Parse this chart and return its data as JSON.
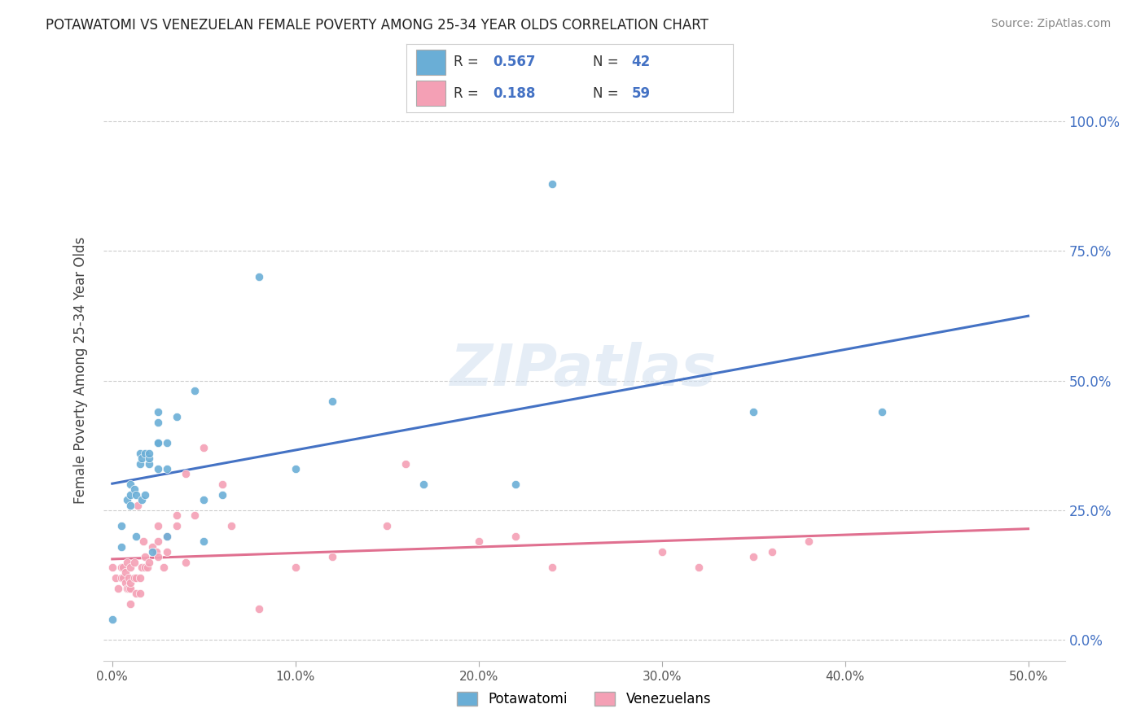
{
  "title": "POTAWATOMI VS VENEZUELAN FEMALE POVERTY AMONG 25-34 YEAR OLDS CORRELATION CHART",
  "source": "Source: ZipAtlas.com",
  "xlabel_ticks": [
    "0.0%",
    "10.0%",
    "20.0%",
    "30.0%",
    "40.0%",
    "50.0%"
  ],
  "xlabel_tick_vals": [
    0.0,
    0.1,
    0.2,
    0.3,
    0.4,
    0.5
  ],
  "ylabel_ticks": [
    "0.0%",
    "25.0%",
    "50.0%",
    "75.0%",
    "100.0%"
  ],
  "ylabel_tick_vals": [
    0.0,
    0.25,
    0.5,
    0.75,
    1.0
  ],
  "xlim": [
    -0.005,
    0.52
  ],
  "ylim": [
    -0.04,
    1.08
  ],
  "ylabel": "Female Poverty Among 25-34 Year Olds",
  "R_potawatomi": 0.567,
  "N_potawatomi": 42,
  "R_venezuelan": 0.188,
  "N_venezuelan": 59,
  "color_potawatomi": "#6aaed6",
  "color_venezuelan": "#f4a0b5",
  "trendline_color_potawatomi": "#4472c4",
  "trendline_color_venezuelan": "#e07090",
  "watermark": "ZIPatlas",
  "potawatomi_x": [
    0.0,
    0.005,
    0.005,
    0.008,
    0.01,
    0.01,
    0.01,
    0.012,
    0.013,
    0.013,
    0.015,
    0.015,
    0.016,
    0.016,
    0.018,
    0.018,
    0.02,
    0.02,
    0.02,
    0.022,
    0.025,
    0.025,
    0.025,
    0.025,
    0.025,
    0.025,
    0.03,
    0.03,
    0.03,
    0.035,
    0.045,
    0.05,
    0.05,
    0.06,
    0.08,
    0.1,
    0.12,
    0.17,
    0.22,
    0.24,
    0.35,
    0.42
  ],
  "potawatomi_y": [
    0.04,
    0.18,
    0.22,
    0.27,
    0.26,
    0.28,
    0.3,
    0.29,
    0.28,
    0.2,
    0.34,
    0.36,
    0.27,
    0.35,
    0.28,
    0.36,
    0.34,
    0.35,
    0.36,
    0.17,
    0.33,
    0.38,
    0.38,
    0.38,
    0.42,
    0.44,
    0.38,
    0.2,
    0.33,
    0.43,
    0.48,
    0.19,
    0.27,
    0.28,
    0.7,
    0.33,
    0.46,
    0.3,
    0.3,
    0.88,
    0.44,
    0.44
  ],
  "venezuelan_x": [
    0.0,
    0.002,
    0.003,
    0.005,
    0.005,
    0.006,
    0.006,
    0.007,
    0.007,
    0.008,
    0.008,
    0.009,
    0.009,
    0.01,
    0.01,
    0.01,
    0.01,
    0.012,
    0.012,
    0.013,
    0.013,
    0.014,
    0.015,
    0.015,
    0.016,
    0.017,
    0.018,
    0.018,
    0.019,
    0.02,
    0.022,
    0.024,
    0.025,
    0.025,
    0.025,
    0.028,
    0.03,
    0.03,
    0.035,
    0.035,
    0.04,
    0.04,
    0.045,
    0.05,
    0.06,
    0.065,
    0.08,
    0.1,
    0.12,
    0.15,
    0.16,
    0.2,
    0.22,
    0.24,
    0.3,
    0.32,
    0.35,
    0.36,
    0.38
  ],
  "venezuelan_y": [
    0.14,
    0.12,
    0.1,
    0.12,
    0.14,
    0.12,
    0.14,
    0.11,
    0.13,
    0.1,
    0.15,
    0.1,
    0.12,
    0.07,
    0.1,
    0.11,
    0.14,
    0.12,
    0.15,
    0.09,
    0.12,
    0.26,
    0.09,
    0.12,
    0.14,
    0.19,
    0.14,
    0.16,
    0.14,
    0.15,
    0.18,
    0.17,
    0.16,
    0.19,
    0.22,
    0.14,
    0.17,
    0.2,
    0.22,
    0.24,
    0.32,
    0.15,
    0.24,
    0.37,
    0.3,
    0.22,
    0.06,
    0.14,
    0.16,
    0.22,
    0.34,
    0.19,
    0.2,
    0.14,
    0.17,
    0.14,
    0.16,
    0.17,
    0.19
  ]
}
